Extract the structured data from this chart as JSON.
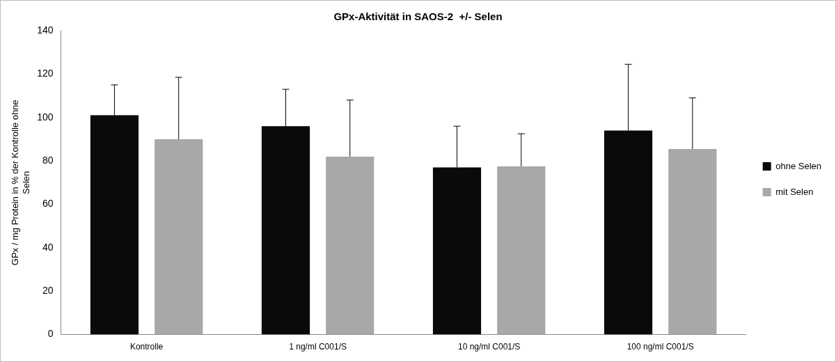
{
  "chart_data": {
    "type": "bar",
    "title": "GPx-Aktivität in SAOS-2  +/- Selen",
    "ylabel": "GPx / mg Protein in % der Kontrolle ohne Selen",
    "categories": [
      "Kontrolle",
      "1 ng/ml C001/S",
      "10 ng/ml C001/S",
      "100 ng/ml C001/S"
    ],
    "series": [
      {
        "name": "ohne Selen",
        "color": "#0a0a0a",
        "values": [
          101,
          96,
          77,
          94
        ],
        "errors": [
          [
            101,
            115
          ],
          [
            96,
            113
          ],
          [
            77,
            96
          ],
          [
            94,
            124.5
          ]
        ]
      },
      {
        "name": "mit Selen",
        "color": "#a8a8a8",
        "values": [
          90,
          82,
          77.5,
          85.5
        ],
        "errors": [
          [
            90,
            118.5
          ],
          [
            82,
            108
          ],
          [
            77.5,
            92.5
          ],
          [
            85.5,
            109
          ]
        ]
      }
    ],
    "ylim": [
      0,
      140
    ],
    "yticks": [
      0,
      20,
      40,
      60,
      80,
      100,
      120,
      140
    ],
    "grid": false,
    "legend": "right"
  }
}
